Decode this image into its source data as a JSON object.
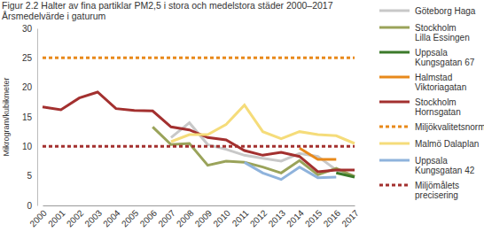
{
  "chart_data": {
    "type": "line",
    "title": "Figur 2.2 Halter av fina partiklar PM2,5 i stora och medelstora städer 2000–2017",
    "subtitle": "Årsmedelvärde i gaturum",
    "y_label": "Mikrogram/kubikmeter",
    "categories": [
      "2000",
      "2001",
      "2002",
      "2003",
      "2004",
      "2005",
      "2006",
      "2007",
      "2008",
      "2009",
      "2010",
      "2011",
      "2012",
      "2013",
      "2014",
      "2015",
      "2016",
      "2017"
    ],
    "ylim": [
      0,
      30
    ],
    "yticks": [
      0,
      5,
      10,
      15,
      20,
      25,
      30
    ],
    "grid": false,
    "legend": "right",
    "series": [
      {
        "name": "Göteborg Haga",
        "color": "#c8c8c8",
        "line_style": "solid",
        "values": [
          null,
          null,
          null,
          null,
          null,
          null,
          null,
          11.5,
          14.0,
          10.3,
          9.5,
          8.5,
          8.0,
          7.5,
          8.8,
          8.3,
          6.0,
          5.0
        ]
      },
      {
        "name": "Stockholm Lilla Essingen",
        "color": "#9aa35a",
        "line_style": "solid",
        "values": [
          null,
          null,
          null,
          null,
          null,
          null,
          13.3,
          10.3,
          10.5,
          6.8,
          7.5,
          7.3,
          6.5,
          5.5,
          7.6,
          5.2,
          6.3,
          4.9
        ]
      },
      {
        "name": "Uppsala Kungsgatan 67",
        "color": "#3b7a2a",
        "line_style": "solid",
        "values": [
          null,
          null,
          null,
          null,
          null,
          null,
          null,
          null,
          null,
          null,
          null,
          null,
          null,
          null,
          null,
          null,
          5.5,
          4.8
        ]
      },
      {
        "name": "Halmstad Viktoriagatan",
        "color": "#e8891b",
        "line_style": "solid",
        "values": [
          null,
          null,
          null,
          null,
          null,
          null,
          null,
          null,
          null,
          null,
          null,
          null,
          null,
          null,
          9.7,
          7.8,
          7.8,
          null
        ]
      },
      {
        "name": "Stockholm Hornsgatan",
        "color": "#a3302f",
        "line_style": "solid",
        "values": [
          16.7,
          16.2,
          18.2,
          19.2,
          16.4,
          16.1,
          16.0,
          13.3,
          12.8,
          11.5,
          11.1,
          9.3,
          8.5,
          9.0,
          8.3,
          5.7,
          6.0,
          6.0
        ]
      },
      {
        "name": "Miljökvalitetsnorm",
        "color": "#e8891b",
        "line_style": "dashed",
        "values": [
          25,
          25,
          25,
          25,
          25,
          25,
          25,
          25,
          25,
          25,
          25,
          25,
          25,
          25,
          25,
          25,
          25,
          25
        ]
      },
      {
        "name": "Malmö Dalaplan",
        "color": "#f5dc7a",
        "line_style": "solid",
        "values": [
          null,
          null,
          null,
          null,
          null,
          null,
          null,
          10.8,
          12.0,
          12.0,
          13.7,
          17.0,
          12.5,
          11.3,
          12.5,
          12.0,
          11.8,
          10.5
        ]
      },
      {
        "name": "Uppsala Kungsgatan 42",
        "color": "#8fb3dc",
        "line_style": "solid",
        "values": [
          null,
          null,
          null,
          null,
          null,
          null,
          null,
          null,
          null,
          null,
          null,
          7.3,
          5.5,
          4.4,
          6.5,
          4.7,
          4.8,
          null
        ]
      },
      {
        "name": "Miljömålets precisering",
        "color": "#a3302f",
        "line_style": "dashed",
        "values": [
          10,
          10,
          10,
          10,
          10,
          10,
          10,
          10,
          10,
          10,
          10,
          10,
          10,
          10,
          10,
          10,
          10,
          10
        ]
      }
    ]
  }
}
